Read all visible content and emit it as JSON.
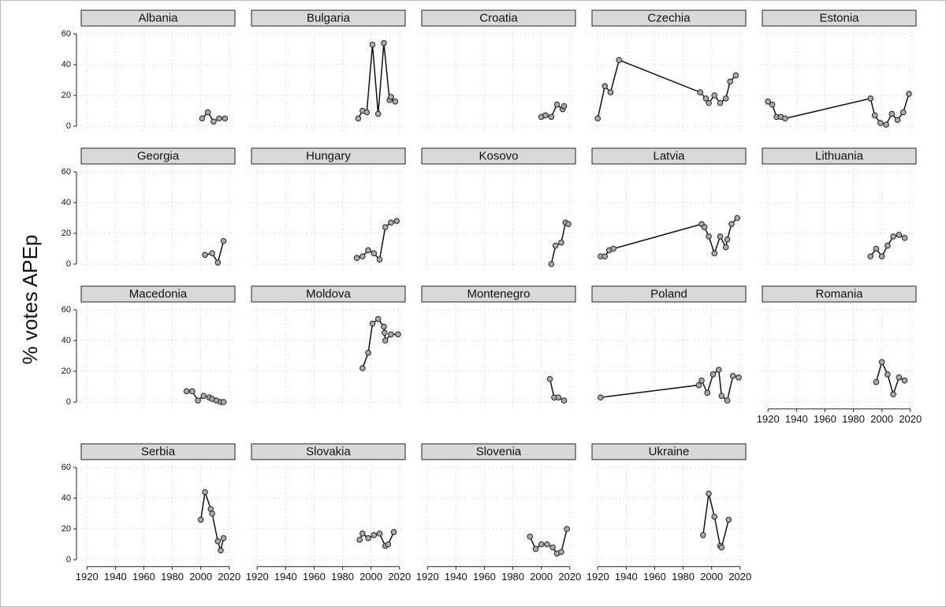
{
  "y_label": "% votes APEp",
  "chart_data": [
    {
      "type": "line",
      "title": "Albania",
      "x": [
        2001,
        2005,
        2009,
        2013,
        2017
      ],
      "values": [
        5,
        9,
        3,
        5,
        5
      ],
      "xlim": [
        1916,
        2024
      ],
      "ylim": [
        -4,
        64
      ],
      "xticks": [
        1920,
        1940,
        1960,
        1980,
        2000,
        2020
      ],
      "yticks": [
        0,
        20,
        40,
        60
      ],
      "grid": true,
      "color": "#111111"
    },
    {
      "type": "line",
      "title": "Bulgaria",
      "x": [
        1991,
        1994,
        1997,
        2001,
        2005,
        2009,
        2013,
        2014,
        2017
      ],
      "values": [
        5,
        10,
        9,
        53,
        8,
        54,
        17,
        19,
        16
      ],
      "xlim": [
        1916,
        2024
      ],
      "ylim": [
        -4,
        64
      ],
      "xticks": [
        1920,
        1940,
        1960,
        1980,
        2000,
        2020
      ],
      "yticks": [
        0,
        20,
        40,
        60
      ],
      "grid": true,
      "color": "#111111"
    },
    {
      "type": "line",
      "title": "Croatia",
      "x": [
        2000,
        2003,
        2007,
        2011,
        2015,
        2016
      ],
      "values": [
        6,
        7,
        6,
        14,
        11,
        13
      ],
      "xlim": [
        1916,
        2024
      ],
      "ylim": [
        -4,
        64
      ],
      "xticks": [
        1920,
        1940,
        1960,
        1980,
        2000,
        2020
      ],
      "yticks": [
        0,
        20,
        40,
        60
      ],
      "grid": true,
      "color": "#111111"
    },
    {
      "type": "line",
      "title": "Czechia",
      "x": [
        1920,
        1925,
        1929,
        1935,
        1992,
        1996,
        1998,
        2002,
        2006,
        2010,
        2013,
        2017
      ],
      "values": [
        5,
        26,
        22,
        43,
        22,
        18,
        15,
        20,
        15,
        18,
        29,
        33
      ],
      "xlim": [
        1916,
        2024
      ],
      "ylim": [
        -4,
        64
      ],
      "xticks": [
        1920,
        1940,
        1960,
        1980,
        2000,
        2020
      ],
      "yticks": [
        0,
        20,
        40,
        60
      ],
      "grid": true,
      "color": "#111111"
    },
    {
      "type": "line",
      "title": "Estonia",
      "x": [
        1920,
        1923,
        1926,
        1929,
        1932,
        1992,
        1995,
        1999,
        2003,
        2007,
        2011,
        2015,
        2019
      ],
      "values": [
        16,
        14,
        6,
        6,
        5,
        18,
        7,
        2,
        1,
        8,
        4,
        9,
        21
      ],
      "xlim": [
        1916,
        2024
      ],
      "ylim": [
        -4,
        64
      ],
      "xticks": [
        1920,
        1940,
        1960,
        1980,
        2000,
        2020
      ],
      "yticks": [
        0,
        20,
        40,
        60
      ],
      "grid": true,
      "color": "#111111"
    },
    {
      "type": "line",
      "title": "Georgia",
      "x": [
        2003,
        2008,
        2012,
        2016
      ],
      "values": [
        6,
        7,
        1,
        15
      ],
      "xlim": [
        1916,
        2024
      ],
      "ylim": [
        -4,
        64
      ],
      "xticks": [
        1920,
        1940,
        1960,
        1980,
        2000,
        2020
      ],
      "yticks": [
        0,
        20,
        40,
        60
      ],
      "grid": true,
      "color": "#111111"
    },
    {
      "type": "line",
      "title": "Hungary",
      "x": [
        1990,
        1994,
        1998,
        2002,
        2006,
        2010,
        2014,
        2018
      ],
      "values": [
        4,
        5,
        9,
        7,
        3,
        24,
        27,
        28
      ],
      "xlim": [
        1916,
        2024
      ],
      "ylim": [
        -4,
        64
      ],
      "xticks": [
        1920,
        1940,
        1960,
        1980,
        2000,
        2020
      ],
      "yticks": [
        0,
        20,
        40,
        60
      ],
      "grid": true,
      "color": "#111111"
    },
    {
      "type": "line",
      "title": "Kosovo",
      "x": [
        2007,
        2010,
        2014,
        2017,
        2019
      ],
      "values": [
        0,
        12,
        14,
        27,
        26
      ],
      "xlim": [
        1916,
        2024
      ],
      "ylim": [
        -4,
        64
      ],
      "xticks": [
        1920,
        1940,
        1960,
        1980,
        2000,
        2020
      ],
      "yticks": [
        0,
        20,
        40,
        60
      ],
      "grid": true,
      "color": "#111111"
    },
    {
      "type": "line",
      "title": "Latvia",
      "x": [
        1922,
        1925,
        1928,
        1931,
        1993,
        1995,
        1998,
        2002,
        2006,
        2010,
        2011,
        2014,
        2018
      ],
      "values": [
        5,
        5,
        9,
        10,
        26,
        24,
        18,
        7,
        18,
        11,
        16,
        26,
        30
      ],
      "xlim": [
        1916,
        2024
      ],
      "ylim": [
        -4,
        64
      ],
      "xticks": [
        1920,
        1940,
        1960,
        1980,
        2000,
        2020
      ],
      "yticks": [
        0,
        20,
        40,
        60
      ],
      "grid": true,
      "color": "#111111"
    },
    {
      "type": "line",
      "title": "Lithuania",
      "x": [
        1992,
        1996,
        2000,
        2004,
        2008,
        2012,
        2016
      ],
      "values": [
        5,
        10,
        5,
        12,
        18,
        19,
        17
      ],
      "xlim": [
        1916,
        2024
      ],
      "ylim": [
        -4,
        64
      ],
      "xticks": [
        1920,
        1940,
        1960,
        1980,
        2000,
        2020
      ],
      "yticks": [
        0,
        20,
        40,
        60
      ],
      "grid": true,
      "color": "#111111"
    },
    {
      "type": "line",
      "title": "Macedonia",
      "x": [
        1990,
        1994,
        1998,
        2002,
        2006,
        2008,
        2011,
        2014,
        2016
      ],
      "values": [
        7,
        7,
        1,
        4,
        3,
        2,
        1,
        0,
        0
      ],
      "xlim": [
        1916,
        2024
      ],
      "ylim": [
        -4,
        64
      ],
      "xticks": [
        1920,
        1940,
        1960,
        1980,
        2000,
        2020
      ],
      "yticks": [
        0,
        20,
        40,
        60
      ],
      "grid": true,
      "color": "#111111"
    },
    {
      "type": "line",
      "title": "Moldova",
      "x": [
        1994,
        1998,
        2001,
        2005,
        2009,
        2009.5,
        2010,
        2014,
        2019
      ],
      "values": [
        22,
        32,
        51,
        54,
        49,
        45,
        40,
        44,
        44
      ],
      "xlim": [
        1916,
        2024
      ],
      "ylim": [
        -4,
        64
      ],
      "xticks": [
        1920,
        1940,
        1960,
        1980,
        2000,
        2020
      ],
      "yticks": [
        0,
        20,
        40,
        60
      ],
      "grid": true,
      "color": "#111111"
    },
    {
      "type": "line",
      "title": "Montenegro",
      "x": [
        2006,
        2009,
        2012,
        2016
      ],
      "values": [
        15,
        3,
        3,
        1
      ],
      "xlim": [
        1916,
        2024
      ],
      "ylim": [
        -4,
        64
      ],
      "xticks": [
        1920,
        1940,
        1960,
        1980,
        2000,
        2020
      ],
      "yticks": [
        0,
        20,
        40,
        60
      ],
      "grid": true,
      "color": "#111111"
    },
    {
      "type": "line",
      "title": "Poland",
      "x": [
        1922,
        1991,
        1993,
        1997,
        2001,
        2005,
        2007,
        2011,
        2015,
        2019
      ],
      "values": [
        3,
        11,
        14,
        6,
        18,
        21,
        4,
        1,
        17,
        16
      ],
      "xlim": [
        1916,
        2024
      ],
      "ylim": [
        -4,
        64
      ],
      "xticks": [
        1920,
        1940,
        1960,
        1980,
        2000,
        2020
      ],
      "yticks": [
        0,
        20,
        40,
        60
      ],
      "grid": true,
      "color": "#111111"
    },
    {
      "type": "line",
      "title": "Romania",
      "x": [
        1996,
        2000,
        2004,
        2008,
        2012,
        2016
      ],
      "values": [
        13,
        26,
        18,
        5,
        16,
        14
      ],
      "xlim": [
        1916,
        2024
      ],
      "ylim": [
        -4,
        64
      ],
      "xticks": [
        1920,
        1940,
        1960,
        1980,
        2000,
        2020
      ],
      "yticks": [
        0,
        20,
        40,
        60
      ],
      "grid": true,
      "color": "#111111"
    },
    {
      "type": "line",
      "title": "Serbia",
      "x": [
        2000,
        2003,
        2007,
        2008,
        2012,
        2014,
        2016
      ],
      "values": [
        26,
        44,
        33,
        30,
        12,
        6,
        14
      ],
      "xlim": [
        1916,
        2024
      ],
      "ylim": [
        -4,
        64
      ],
      "xticks": [
        1920,
        1940,
        1960,
        1980,
        2000,
        2020
      ],
      "yticks": [
        0,
        20,
        40,
        60
      ],
      "grid": true,
      "color": "#111111"
    },
    {
      "type": "line",
      "title": "Slovakia",
      "x": [
        1992,
        1994,
        1998,
        2002,
        2006,
        2010,
        2012,
        2016
      ],
      "values": [
        13,
        17,
        14,
        16,
        17,
        9,
        10,
        18
      ],
      "xlim": [
        1916,
        2024
      ],
      "ylim": [
        -4,
        64
      ],
      "xticks": [
        1920,
        1940,
        1960,
        1980,
        2000,
        2020
      ],
      "yticks": [
        0,
        20,
        40,
        60
      ],
      "grid": true,
      "color": "#111111"
    },
    {
      "type": "line",
      "title": "Slovenia",
      "x": [
        1992,
        1996,
        2000,
        2004,
        2008,
        2011,
        2014,
        2018
      ],
      "values": [
        15,
        7,
        10,
        10,
        8,
        4,
        5,
        20
      ],
      "xlim": [
        1916,
        2024
      ],
      "ylim": [
        -4,
        64
      ],
      "xticks": [
        1920,
        1940,
        1960,
        1980,
        2000,
        2020
      ],
      "yticks": [
        0,
        20,
        40,
        60
      ],
      "grid": true,
      "color": "#111111"
    },
    {
      "type": "line",
      "title": "Ukraine",
      "x": [
        1994,
        1998,
        2002,
        2006,
        2007,
        2012
      ],
      "values": [
        16,
        43,
        28,
        9,
        8,
        26
      ],
      "xlim": [
        1916,
        2024
      ],
      "ylim": [
        -4,
        64
      ],
      "xticks": [
        1920,
        1940,
        1960,
        1980,
        2000,
        2020
      ],
      "yticks": [
        0,
        20,
        40,
        60
      ],
      "grid": true,
      "color": "#111111"
    }
  ]
}
